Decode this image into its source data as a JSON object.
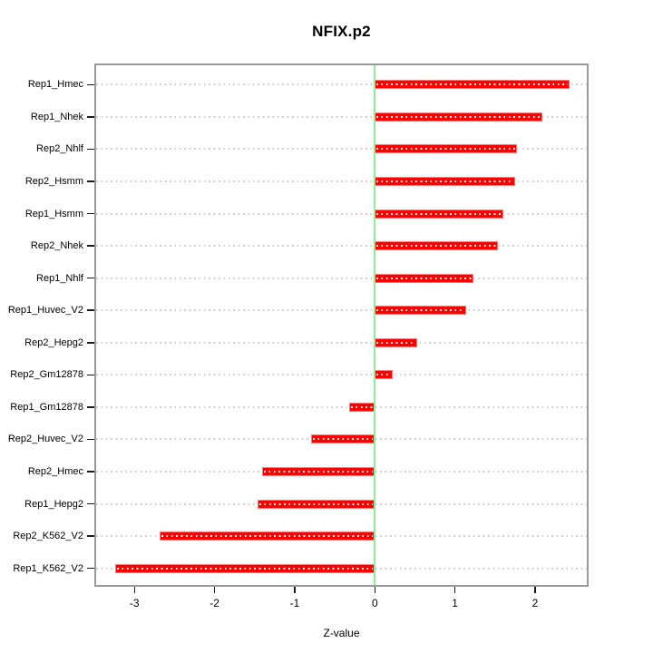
{
  "title": "NFIX.p2",
  "chart_data": {
    "type": "bar",
    "orientation": "horizontal",
    "title": "NFIX.p2",
    "xlabel": "Z-value",
    "ylabel": "",
    "categories": [
      "Rep1_Hmec",
      "Rep1_Nhek",
      "Rep2_Nhlf",
      "Rep2_Hsmm",
      "Rep1_Hsmm",
      "Rep2_Nhek",
      "Rep1_Nhlf",
      "Rep1_Huvec_V2",
      "Rep2_Hepg2",
      "Rep2_Gm12878",
      "Rep1_Gm12878",
      "Rep2_Huvec_V2",
      "Rep2_Hmec",
      "Rep1_Hepg2",
      "Rep2_K562_V2",
      "Rep1_K562_V2"
    ],
    "values": [
      2.43,
      2.09,
      1.77,
      1.75,
      1.6,
      1.54,
      1.23,
      1.14,
      0.53,
      0.22,
      -0.32,
      -0.8,
      -1.41,
      -1.46,
      -2.69,
      -3.24
    ],
    "x_ticks": [
      -3,
      -2,
      -1,
      0,
      1,
      2
    ],
    "x_tick_labels": [
      "-3",
      "-2",
      "-1",
      "0",
      "1",
      "2"
    ],
    "xlim": [
      -3.49,
      2.66
    ],
    "grid": true,
    "legend": null,
    "colors": {
      "bar": "#ff0000",
      "bar_edge": "#ff7d7d",
      "bar_dotline": "#ffffff",
      "zero_line": "#90ee90",
      "gridline": "#cfcfcf",
      "plot_border": "#999999",
      "text": "#000000",
      "background": "#ffffff"
    }
  }
}
